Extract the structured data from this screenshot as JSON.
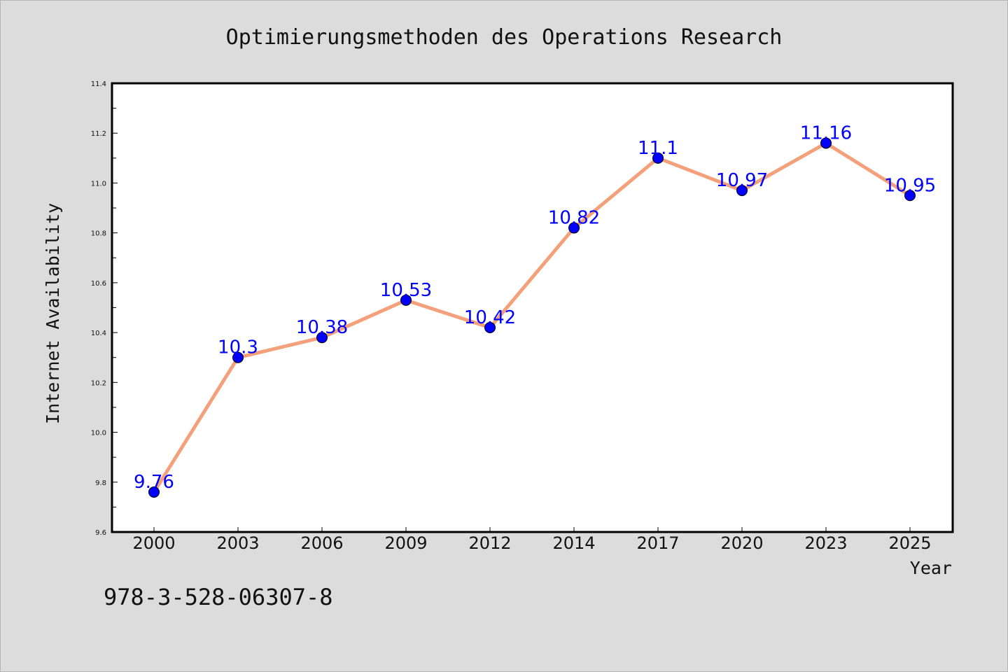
{
  "chart_data": {
    "type": "line",
    "title": "Optimierungsmethoden des Operations Research",
    "xlabel": "Year",
    "ylabel": "Internet Availability",
    "categories": [
      "2000",
      "2003",
      "2006",
      "2009",
      "2012",
      "2014",
      "2017",
      "2020",
      "2023",
      "2025"
    ],
    "series": [
      {
        "values": [
          9.76,
          10.3,
          10.38,
          10.53,
          10.42,
          10.82,
          11.1,
          10.97,
          11.16,
          10.95
        ],
        "data_labels": [
          "9.76",
          "10.3",
          "10.38",
          "10.53",
          "10.42",
          "10.82",
          "11.1",
          "10.97",
          "11.16",
          "10.95"
        ],
        "line_color": "#f4a07a",
        "marker_color": "#0000ff"
      }
    ],
    "ylim": [
      9.6,
      11.4
    ],
    "yticks": [
      "9.6",
      "9.8",
      "10.0",
      "10.2",
      "10.4",
      "10.6",
      "10.8",
      "11.0",
      "11.2",
      "11.4"
    ],
    "grid": false,
    "footer": "978-3-528-06307-8",
    "background": "#dcdcdc",
    "plot_background": "#ffffff",
    "label_color": "#0000ff"
  }
}
